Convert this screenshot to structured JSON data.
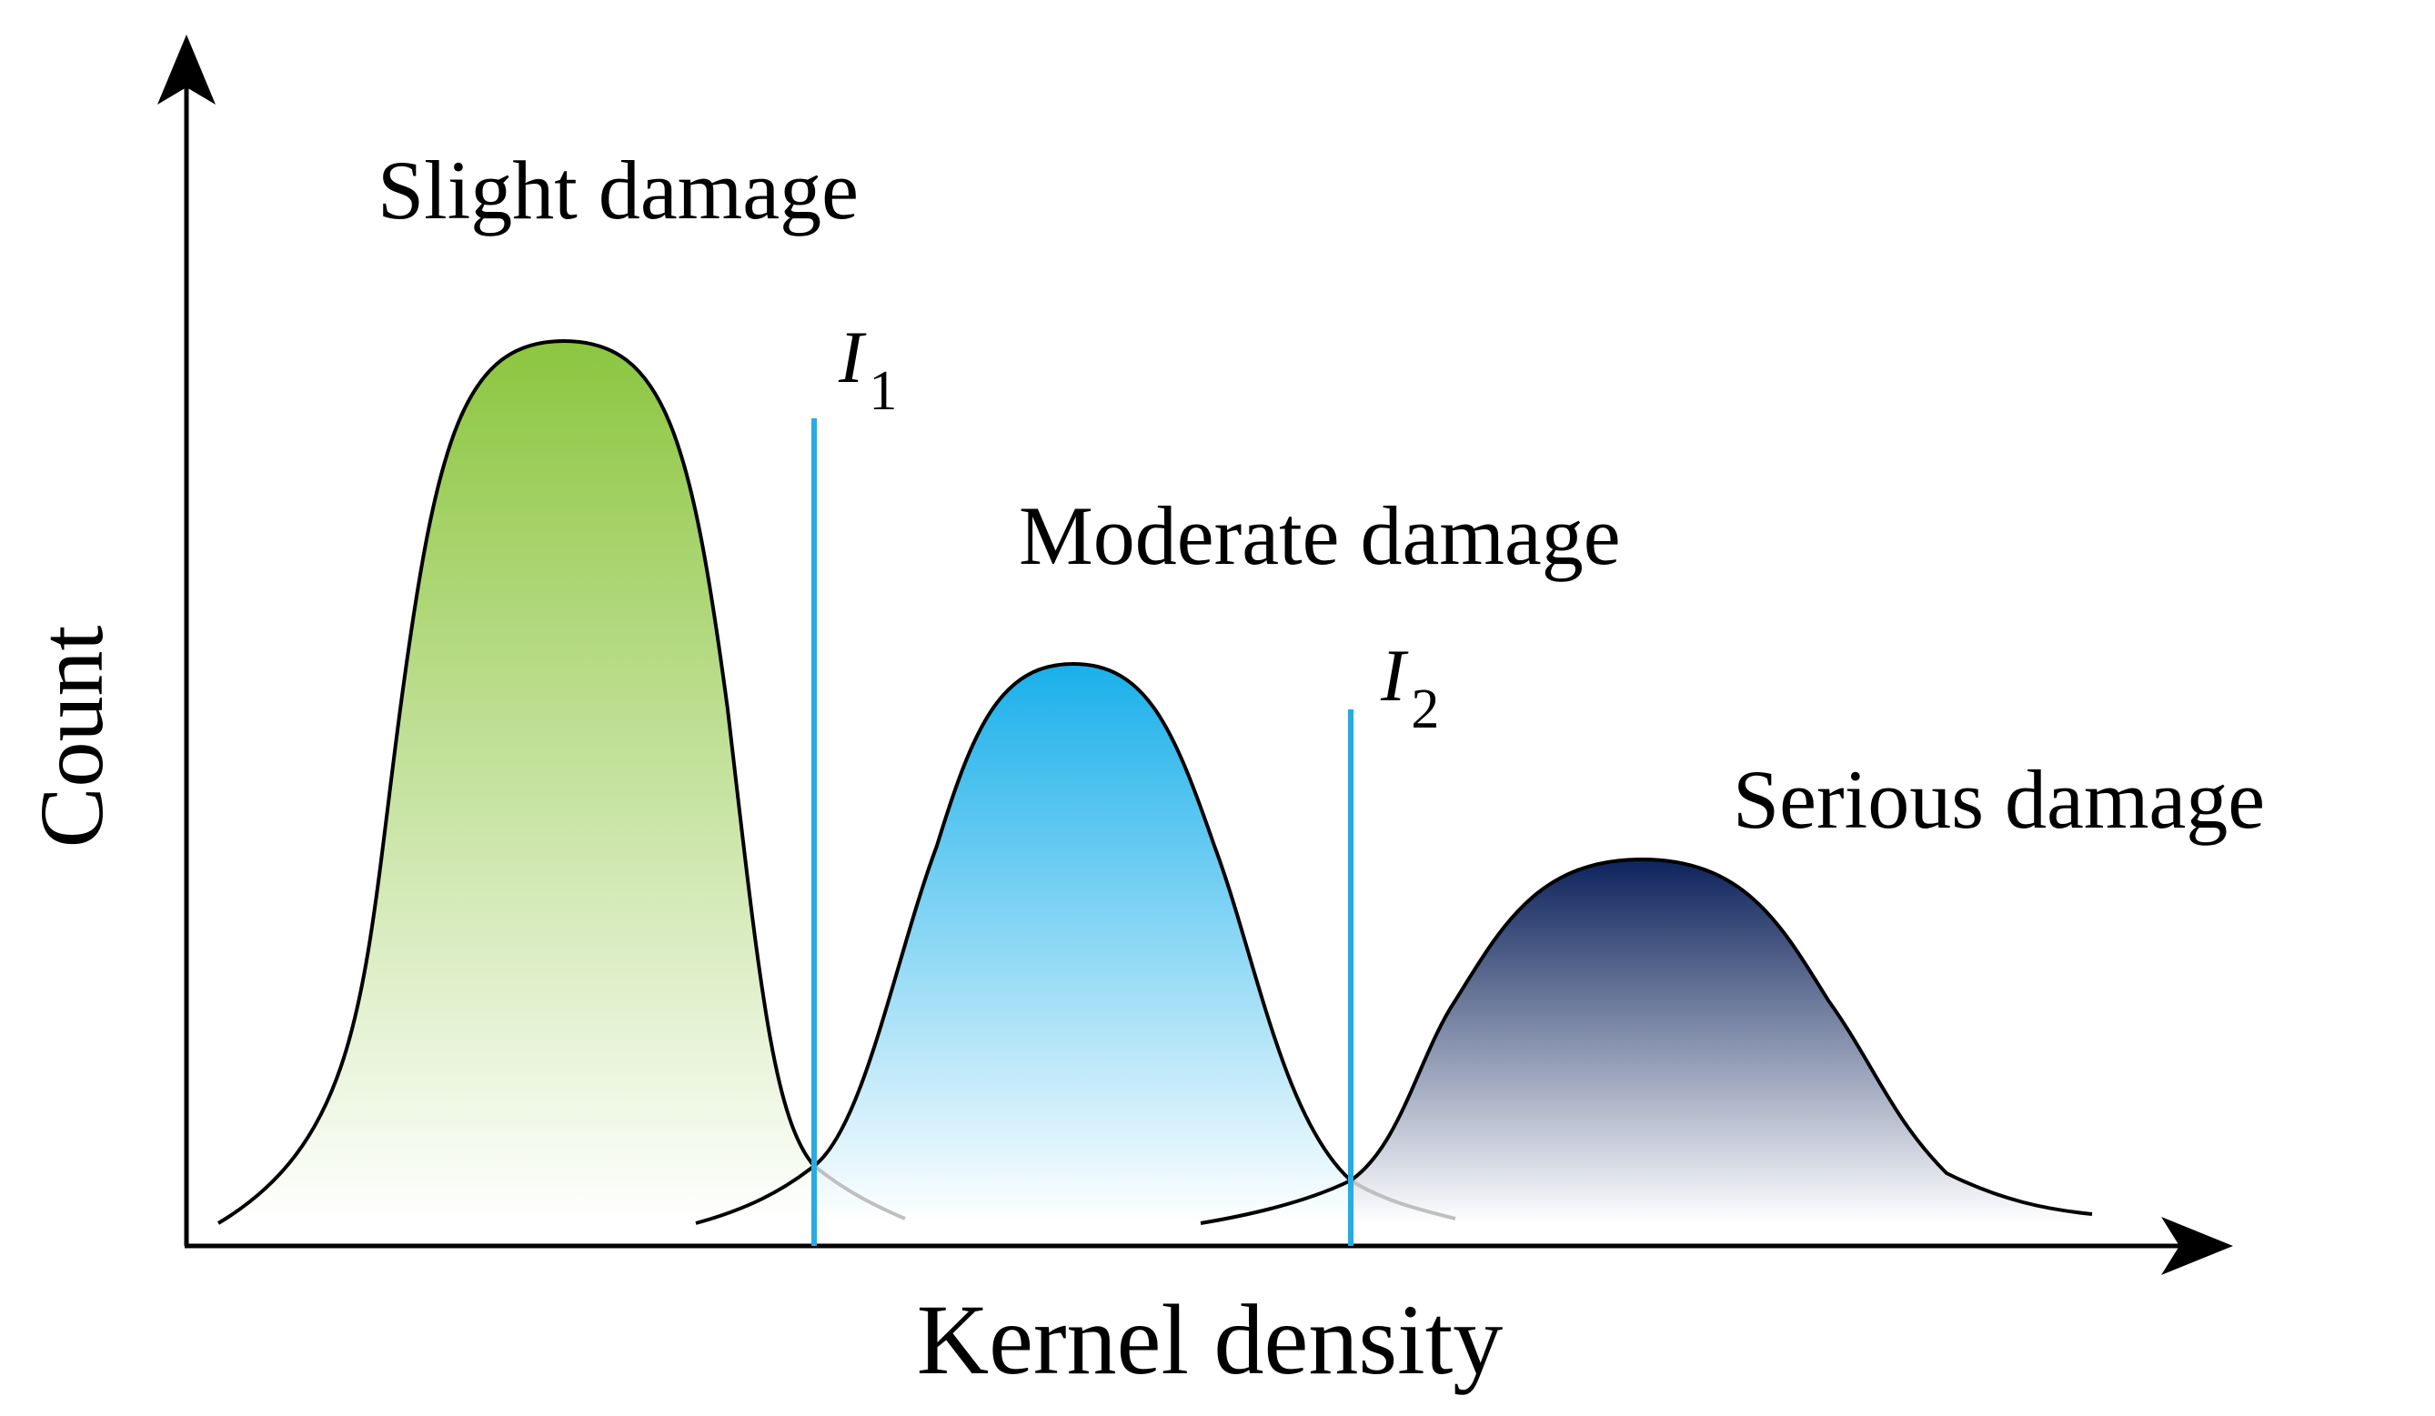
{
  "labels": {
    "y_axis": "Count",
    "x_axis": "Kernel density"
  },
  "distributions": [
    {
      "label": "Slight damage",
      "peak": 1.0,
      "color_top": "#8cc63f",
      "color_bottom": "#ffffff"
    },
    {
      "label": "Moderate damage",
      "peak": 0.64,
      "color_top": "#1ab0ea",
      "color_bottom": "#ffffff"
    },
    {
      "label": "Serious damage",
      "peak": 0.43,
      "color_top": "#0d235c",
      "color_bottom": "#ffffff"
    }
  ],
  "thresholds": [
    {
      "symbol": "I",
      "subscript": "1"
    },
    {
      "symbol": "I",
      "subscript": "2"
    }
  ],
  "colors": {
    "axis": "#000000",
    "threshold": "#29abe2",
    "tail": "#bfbfbf"
  }
}
